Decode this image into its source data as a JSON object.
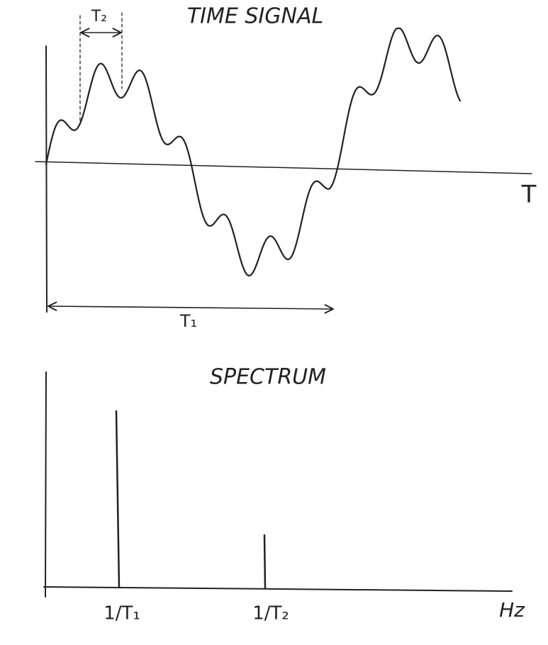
{
  "time_signal": {
    "title": "TIME SIGNAL",
    "short_period_label": "T₂",
    "axis_label": "T",
    "long_period_label": "T₁"
  },
  "spectrum": {
    "title": "SPECTRUM",
    "peak_labels": [
      "1/T₁",
      "1/T₂"
    ],
    "axis_label": "Hz"
  }
}
